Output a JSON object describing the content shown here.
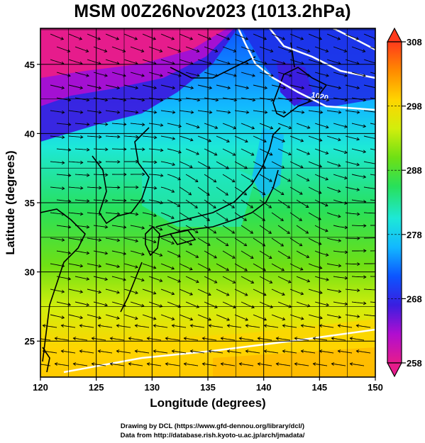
{
  "title": "MSM 00Z26Nov2023 (1013.2hPa)",
  "chart_data": {
    "type": "heatmap",
    "variable": "temperature with streamlines",
    "xlabel": "Longitude (degrees)",
    "ylabel": "Latitude  (degrees)",
    "xlim": [
      120,
      150
    ],
    "ylim": [
      22.4,
      47.6
    ],
    "x_ticks": [
      "120",
      "125",
      "130",
      "135",
      "140",
      "145",
      "150"
    ],
    "y_ticks": [
      "25",
      "30",
      "35",
      "40",
      "45"
    ],
    "grid": true,
    "colorbar": {
      "min": 258,
      "max": 308,
      "ticks": [
        "308",
        "298",
        "288",
        "278",
        "268",
        "258"
      ],
      "colors": [
        "#e61c8c",
        "#b00ed0",
        "#3a1ee0",
        "#0c55ff",
        "#12b8ff",
        "#1de8d8",
        "#28e05a",
        "#6fe014",
        "#d2ee0c",
        "#ffd400",
        "#ff8a00",
        "#ff3a1c"
      ]
    },
    "contour_label": "1020"
  },
  "credits": {
    "line1": "Drawing by DCL (https://www.gfd-dennou.org/library/dcl/)",
    "line2": "Data from http://database.rish.kyoto-u.ac.jp/arch/jmadata/"
  }
}
